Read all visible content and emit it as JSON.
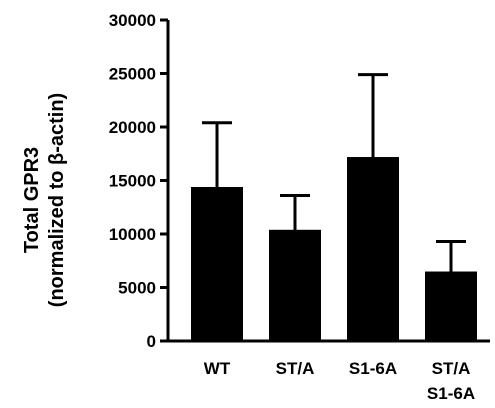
{
  "chart_data": {
    "type": "bar",
    "ylabel_line1": "Total GPR3",
    "ylabel_line2": "(normalized to β-actin)",
    "categories": [
      {
        "line1": "WT",
        "line2": ""
      },
      {
        "line1": "ST/A",
        "line2": ""
      },
      {
        "line1": "S1-6A",
        "line2": ""
      },
      {
        "line1": "ST/A",
        "line2": "S1-6A"
      }
    ],
    "values": [
      14300,
      10300,
      17100,
      6400
    ],
    "errors": [
      6100,
      3300,
      7800,
      2900
    ],
    "ylim": [
      0,
      30000
    ],
    "yticks": [
      0,
      5000,
      10000,
      15000,
      20000,
      25000,
      30000
    ],
    "bar_color": "#000000",
    "grid": false,
    "legend": "none"
  }
}
